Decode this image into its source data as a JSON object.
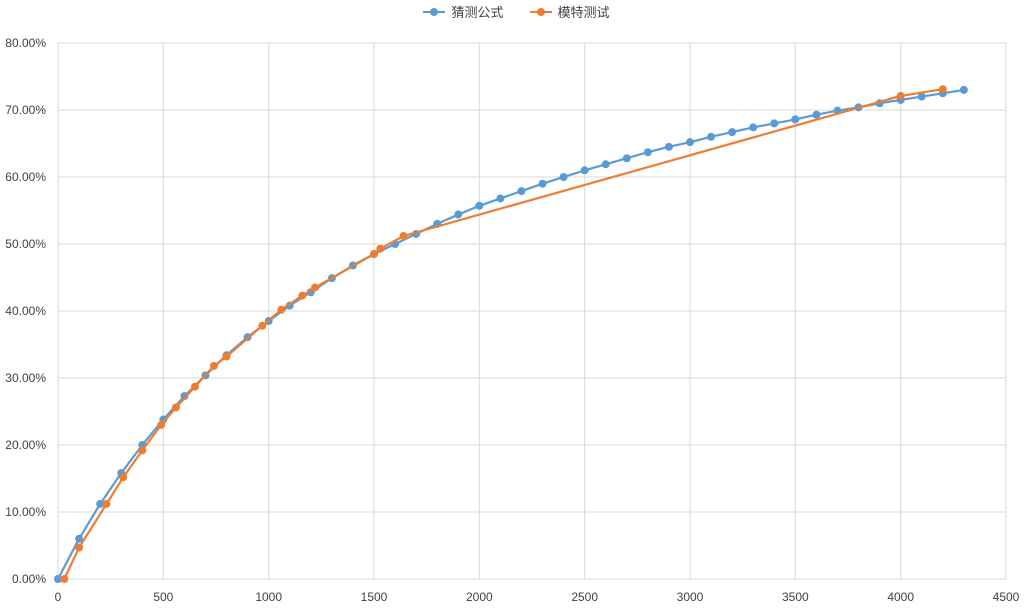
{
  "chart_data": {
    "type": "line",
    "xlim": [
      0,
      4500
    ],
    "ylim": [
      0,
      80
    ],
    "x_ticks": [
      "0",
      "500",
      "1000",
      "1500",
      "2000",
      "2500",
      "3000",
      "3500",
      "4000",
      "4500"
    ],
    "y_ticks": [
      "0.00%",
      "10.00%",
      "20.00%",
      "30.00%",
      "40.00%",
      "50.00%",
      "60.00%",
      "70.00%",
      "80.00%"
    ],
    "grid": true,
    "legend_position": "top",
    "series": [
      {
        "name": "猜测公式",
        "color": "#5b9bd5",
        "x": [
          0,
          100,
          200,
          300,
          400,
          500,
          600,
          700,
          800,
          900,
          1000,
          1100,
          1200,
          1300,
          1400,
          1500,
          1600,
          1700,
          1800,
          1900,
          2000,
          2100,
          2200,
          2300,
          2400,
          2500,
          2600,
          2700,
          2800,
          2900,
          3000,
          3100,
          3200,
          3300,
          3400,
          3500,
          3600,
          3700,
          3800,
          3900,
          4000,
          4100,
          4200,
          4300
        ],
        "y": [
          0,
          6.0,
          11.2,
          15.8,
          20.0,
          23.8,
          27.3,
          30.4,
          33.4,
          36.1,
          38.5,
          40.8,
          42.8,
          44.9,
          46.8,
          48.5,
          50.0,
          51.5,
          53.0,
          54.4,
          55.7,
          56.8,
          57.9,
          59.0,
          60.0,
          61.0,
          61.9,
          62.8,
          63.7,
          64.5,
          65.2,
          66.0,
          66.7,
          67.4,
          68.0,
          68.6,
          69.3,
          69.9,
          70.4,
          71.0,
          71.5,
          72.0,
          72.5,
          73.0
        ]
      },
      {
        "name": "模特测试",
        "color": "#ed7d31",
        "x": [
          30,
          100,
          230,
          310,
          400,
          490,
          560,
          650,
          740,
          800,
          970,
          1060,
          1160,
          1220,
          1500,
          1530,
          1640,
          4000,
          4200
        ],
        "y": [
          0,
          4.7,
          11.2,
          15.2,
          19.2,
          23.0,
          25.6,
          28.7,
          31.8,
          33.2,
          37.8,
          40.2,
          42.3,
          43.5,
          48.5,
          49.3,
          51.2,
          72.1,
          73.1
        ]
      }
    ]
  }
}
